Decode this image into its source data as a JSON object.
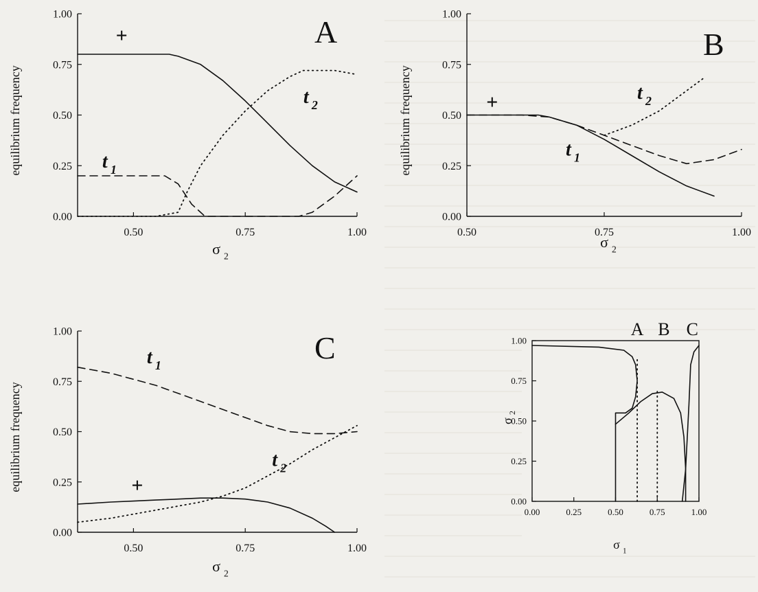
{
  "colors": {
    "ink": "#111111",
    "paper": "#f1f0ec",
    "bgtext": "#c9c6bf"
  },
  "chart_data": [
    {
      "panel": "A",
      "type": "line",
      "ylabel": "equilibrium frequency",
      "xlabel": "σ",
      "xlabel_sub": "2",
      "xlim": [
        0.375,
        1.0
      ],
      "ylim": [
        0,
        1.0
      ],
      "xticks": [
        "0.50",
        "0.75",
        "1.00"
      ],
      "yticks": [
        "0.00",
        "0.25",
        "0.50",
        "0.75",
        "1.00"
      ],
      "grid": false,
      "series": [
        {
          "name": "+",
          "style": "solid",
          "x": [
            0.375,
            0.45,
            0.5,
            0.55,
            0.58,
            0.6,
            0.65,
            0.7,
            0.75,
            0.8,
            0.85,
            0.9,
            0.95,
            1.0
          ],
          "y": [
            0.8,
            0.8,
            0.8,
            0.8,
            0.8,
            0.79,
            0.75,
            0.67,
            0.57,
            0.46,
            0.35,
            0.25,
            0.17,
            0.12
          ]
        },
        {
          "name": "t1",
          "style": "dashed",
          "x": [
            0.375,
            0.5,
            0.57,
            0.6,
            0.63,
            0.66,
            0.7,
            0.8,
            0.87,
            0.9,
            0.95,
            1.0
          ],
          "y": [
            0.2,
            0.2,
            0.2,
            0.16,
            0.06,
            0.0,
            0.0,
            0.0,
            0.0,
            0.02,
            0.1,
            0.2
          ]
        },
        {
          "name": "t2",
          "style": "dotted",
          "x": [
            0.375,
            0.55,
            0.6,
            0.62,
            0.65,
            0.7,
            0.75,
            0.8,
            0.85,
            0.88,
            0.9,
            0.95,
            1.0
          ],
          "y": [
            0.0,
            0.0,
            0.02,
            0.12,
            0.25,
            0.4,
            0.52,
            0.62,
            0.69,
            0.72,
            0.72,
            0.72,
            0.7
          ]
        }
      ],
      "annotations": [
        {
          "text": "+",
          "x": 0.46,
          "y": 0.86
        },
        {
          "text": "t",
          "sub": "1",
          "x": 0.43,
          "y": 0.24
        },
        {
          "text": "t",
          "sub": "2",
          "x": 0.88,
          "y": 0.56
        }
      ]
    },
    {
      "panel": "B",
      "type": "line",
      "ylabel": "equilibrium frequency",
      "xlabel": "σ",
      "xlabel_sub": "2",
      "xlim": [
        0.5,
        1.0
      ],
      "ylim": [
        0,
        1.0
      ],
      "xticks": [
        "0.50",
        "0.75",
        "1.00"
      ],
      "yticks": [
        "0.00",
        "0.25",
        "0.50",
        "0.75",
        "1.00"
      ],
      "grid": false,
      "series": [
        {
          "name": "+",
          "style": "solid",
          "x": [
            0.5,
            0.55,
            0.6,
            0.63,
            0.65,
            0.7,
            0.75,
            0.8,
            0.85,
            0.9,
            0.95
          ],
          "y": [
            0.5,
            0.5,
            0.5,
            0.5,
            0.49,
            0.45,
            0.38,
            0.3,
            0.22,
            0.15,
            0.1
          ]
        },
        {
          "name": "t1",
          "style": "dashed",
          "x": [
            0.5,
            0.6,
            0.65,
            0.7,
            0.75,
            0.8,
            0.85,
            0.9,
            0.95,
            1.0
          ],
          "y": [
            0.5,
            0.5,
            0.49,
            0.45,
            0.4,
            0.35,
            0.3,
            0.26,
            0.28,
            0.33
          ]
        },
        {
          "name": "t2",
          "style": "dotted",
          "x": [
            0.75,
            0.8,
            0.85,
            0.88,
            0.9,
            0.93
          ],
          "y": [
            0.4,
            0.45,
            0.52,
            0.58,
            0.62,
            0.68
          ]
        }
      ],
      "annotations": [
        {
          "text": "+",
          "x": 0.535,
          "y": 0.53
        },
        {
          "text": "t",
          "sub": "1",
          "x": 0.68,
          "y": 0.3
        },
        {
          "text": "t",
          "sub": "2",
          "x": 0.81,
          "y": 0.58
        }
      ]
    },
    {
      "panel": "C",
      "type": "line",
      "ylabel": "equilibrium frequency",
      "xlabel": "σ",
      "xlabel_sub": "2",
      "xlim": [
        0.375,
        1.0
      ],
      "ylim": [
        0,
        1.0
      ],
      "xticks": [
        "0.50",
        "0.75",
        "1.00"
      ],
      "yticks": [
        "0.00",
        "0.25",
        "0.50",
        "0.75",
        "1.00"
      ],
      "grid": false,
      "series": [
        {
          "name": "+",
          "style": "solid",
          "x": [
            0.375,
            0.45,
            0.5,
            0.55,
            0.6,
            0.65,
            0.7,
            0.75,
            0.8,
            0.85,
            0.9,
            0.93,
            0.95
          ],
          "y": [
            0.14,
            0.15,
            0.155,
            0.16,
            0.165,
            0.17,
            0.17,
            0.165,
            0.15,
            0.12,
            0.07,
            0.03,
            0.0
          ]
        },
        {
          "name": "t1",
          "style": "dashed",
          "x": [
            0.375,
            0.45,
            0.5,
            0.55,
            0.6,
            0.65,
            0.7,
            0.75,
            0.8,
            0.85,
            0.9,
            0.95,
            1.0
          ],
          "y": [
            0.82,
            0.79,
            0.76,
            0.73,
            0.69,
            0.65,
            0.61,
            0.57,
            0.53,
            0.5,
            0.49,
            0.49,
            0.5
          ]
        },
        {
          "name": "t2",
          "style": "dotted",
          "x": [
            0.375,
            0.45,
            0.5,
            0.55,
            0.6,
            0.65,
            0.7,
            0.75,
            0.8,
            0.85,
            0.9,
            0.95,
            1.0
          ],
          "y": [
            0.05,
            0.07,
            0.09,
            0.11,
            0.13,
            0.15,
            0.18,
            0.22,
            0.28,
            0.34,
            0.41,
            0.47,
            0.53
          ]
        }
      ],
      "annotations": [
        {
          "text": "+",
          "x": 0.495,
          "y": 0.2
        },
        {
          "text": "t",
          "sub": "1",
          "x": 0.53,
          "y": 0.84
        },
        {
          "text": "t",
          "sub": "2",
          "x": 0.81,
          "y": 0.33
        }
      ]
    },
    {
      "panel": "phase",
      "type": "line",
      "ylabel": "σ",
      "ylabel_sub": "2",
      "xlabel": "σ",
      "xlabel_sub": "1",
      "xlim": [
        0,
        1.0
      ],
      "ylim": [
        0,
        1.0
      ],
      "xticks": [
        "0.00",
        "0.25",
        "0.50",
        "0.75",
        "1.00"
      ],
      "yticks": [
        "0.00",
        "0.25",
        "0.50",
        "0.75",
        "1.00"
      ],
      "grid": false,
      "top_labels": [
        "A",
        "B",
        "C"
      ],
      "lines": [
        {
          "style": "solid",
          "x": [
            0.0,
            0.4,
            0.55,
            0.6,
            0.62,
            0.63,
            0.62,
            0.6,
            0.56,
            0.5,
            0.5
          ],
          "y": [
            0.97,
            0.96,
            0.94,
            0.9,
            0.85,
            0.75,
            0.65,
            0.58,
            0.55,
            0.55,
            0.0
          ]
        },
        {
          "style": "solid",
          "x": [
            0.5,
            0.58,
            0.65,
            0.72,
            0.78,
            0.85,
            0.89,
            0.91,
            0.92,
            0.92
          ],
          "y": [
            0.48,
            0.55,
            0.62,
            0.67,
            0.68,
            0.64,
            0.55,
            0.4,
            0.2,
            0.0
          ]
        },
        {
          "style": "solid",
          "x": [
            0.9,
            0.92,
            0.94,
            0.95,
            0.97,
            1.0
          ],
          "y": [
            0.0,
            0.2,
            0.6,
            0.85,
            0.93,
            0.97
          ]
        },
        {
          "style": "dotted",
          "x": [
            0.63,
            0.63
          ],
          "y": [
            0.0,
            0.9
          ]
        },
        {
          "style": "dotted",
          "x": [
            0.75,
            0.75
          ],
          "y": [
            0.0,
            0.7
          ]
        }
      ]
    }
  ]
}
